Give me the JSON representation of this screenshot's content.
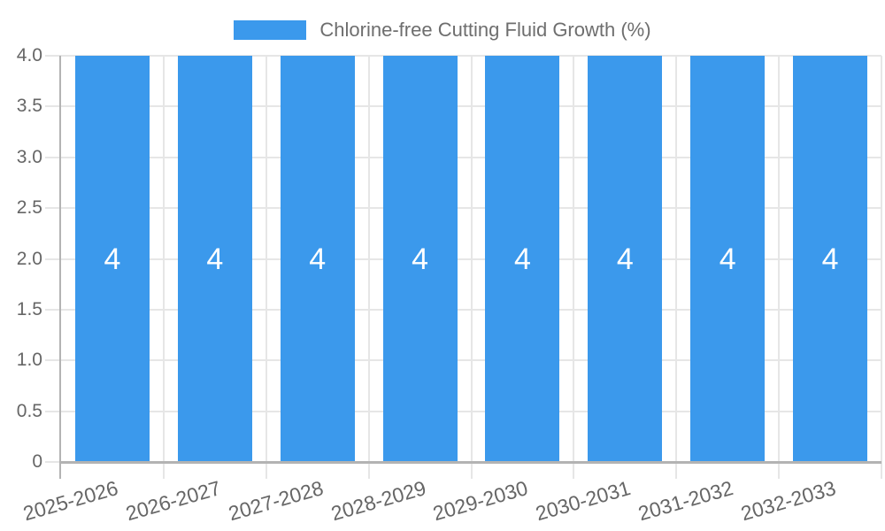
{
  "legend": {
    "label": "Chlorine-free Cutting Fluid Growth (%)",
    "position": "top"
  },
  "chart_data": {
    "type": "bar",
    "title": "",
    "xlabel": "",
    "ylabel": "",
    "categories": [
      "2025-2026",
      "2026-2027",
      "2027-2028",
      "2028-2029",
      "2029-2030",
      "2030-2031",
      "2031-2032",
      "2032-2033"
    ],
    "series": [
      {
        "name": "Chlorine-free Cutting Fluid Growth (%)",
        "values": [
          4,
          4,
          4,
          4,
          4,
          4,
          4,
          4
        ]
      }
    ],
    "bar_value_labels": [
      "4",
      "4",
      "4",
      "4",
      "4",
      "4",
      "4",
      "4"
    ],
    "ylim": [
      0,
      4
    ],
    "ytick_values": [
      0,
      0.5,
      1,
      1.5,
      2,
      2.5,
      3,
      3.5,
      4
    ],
    "ytick_labels": [
      "0",
      "0.5",
      "1.0",
      "1.5",
      "2.0",
      "2.5",
      "3.0",
      "3.5",
      "4.0"
    ],
    "grid": true,
    "legend_position": "top",
    "colors": {
      "bar": "#3B99EC",
      "grid": "#E6E6E6",
      "axis": "#B3B3B3",
      "tick_text": "#666666",
      "legend_text": "#6E6E6E",
      "bar_label_text": "#FFFFFF",
      "background": "#FFFFFF"
    }
  }
}
